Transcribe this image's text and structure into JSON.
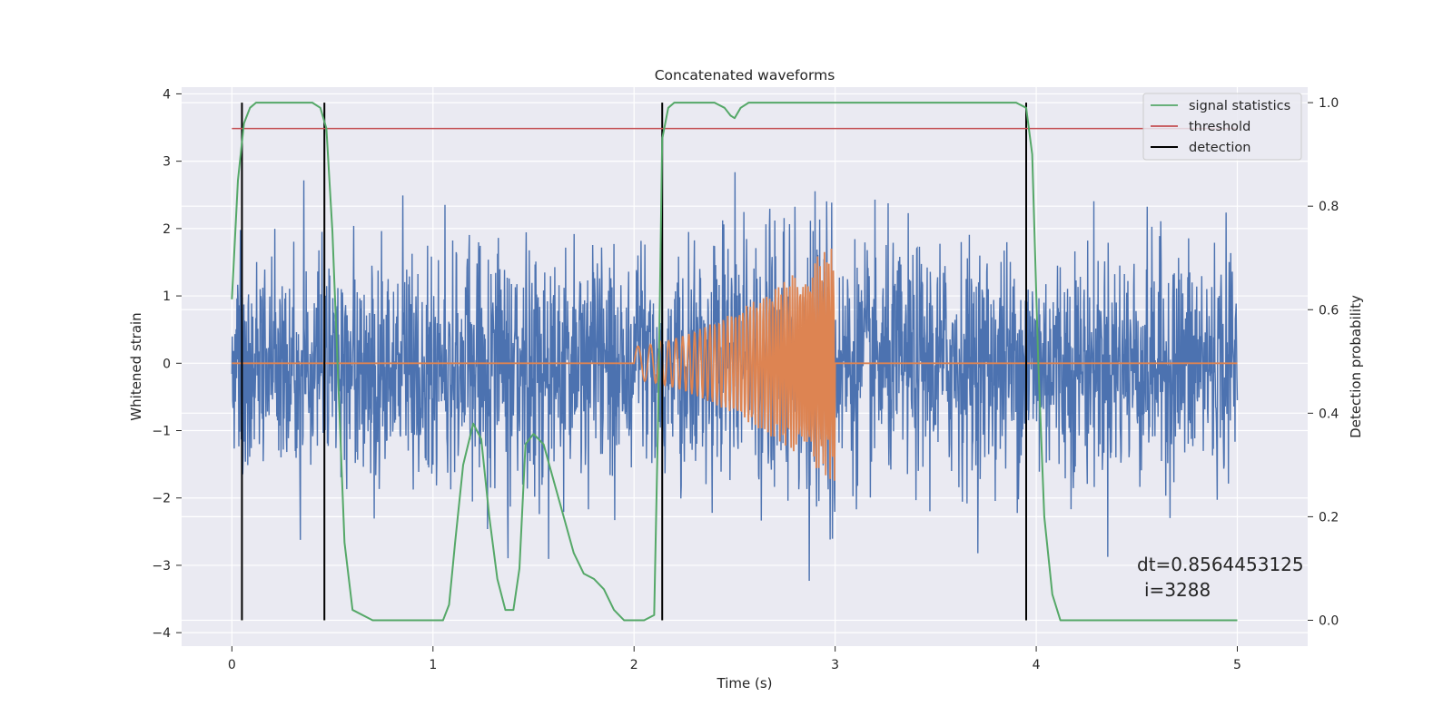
{
  "chart_data": {
    "type": "line",
    "title": "Concatenated waveforms",
    "xlabel": "Time (s)",
    "ylabel": "Whitened strain",
    "y2label": "Detection probability",
    "xlim": [
      -0.25,
      5.35
    ],
    "ylim": [
      -4.2,
      4.1
    ],
    "y2lim": [
      -0.05,
      1.03
    ],
    "xticks": [
      0,
      1,
      2,
      3,
      4,
      5
    ],
    "yticks": [
      4,
      3,
      2,
      1,
      0,
      -1,
      -2,
      -3,
      -4
    ],
    "y2ticks": [
      1.0,
      0.8,
      0.6,
      0.4,
      0.2,
      0.0
    ],
    "ytick_labels": [
      "4",
      "3",
      "2",
      "1",
      "0",
      "−1",
      "−2",
      "−3",
      "−4"
    ],
    "y2tick_labels": [
      "1.0",
      "0.8",
      "0.6",
      "0.4",
      "0.2",
      "0.0"
    ],
    "grid": true,
    "legend_position": "top-right",
    "colors": {
      "strain": "#4c72b0",
      "template": "#dd8452",
      "statistics": "#55a868",
      "threshold": "#c44e52",
      "detection": "#000000",
      "background": "#eaeaf2",
      "grid": "#ffffff"
    },
    "series": [
      {
        "name": "signal statistics",
        "axis": "right",
        "x": [
          0.0,
          0.03,
          0.06,
          0.09,
          0.12,
          0.15,
          0.2,
          0.3,
          0.4,
          0.44,
          0.47,
          0.5,
          0.53,
          0.56,
          0.6,
          0.7,
          0.9,
          1.05,
          1.08,
          1.11,
          1.15,
          1.2,
          1.24,
          1.28,
          1.32,
          1.36,
          1.4,
          1.43,
          1.46,
          1.5,
          1.55,
          1.6,
          1.65,
          1.7,
          1.75,
          1.8,
          1.85,
          1.9,
          1.95,
          2.0,
          2.05,
          2.1,
          2.12,
          2.14,
          2.17,
          2.2,
          2.3,
          2.4,
          2.45,
          2.48,
          2.5,
          2.53,
          2.57,
          2.7,
          3.0,
          3.5,
          3.9,
          3.95,
          3.98,
          4.01,
          4.04,
          4.08,
          4.12,
          4.2,
          4.6,
          5.0
        ],
        "y": [
          0.62,
          0.85,
          0.96,
          0.99,
          1.0,
          1.0,
          1.0,
          1.0,
          1.0,
          0.99,
          0.95,
          0.75,
          0.45,
          0.15,
          0.02,
          0.0,
          0.0,
          0.0,
          0.03,
          0.15,
          0.3,
          0.38,
          0.35,
          0.2,
          0.08,
          0.02,
          0.02,
          0.1,
          0.34,
          0.36,
          0.34,
          0.27,
          0.2,
          0.13,
          0.09,
          0.08,
          0.06,
          0.02,
          0.0,
          0.0,
          0.0,
          0.01,
          0.4,
          0.93,
          0.99,
          1.0,
          1.0,
          1.0,
          0.99,
          0.975,
          0.97,
          0.99,
          1.0,
          1.0,
          1.0,
          1.0,
          1.0,
          0.99,
          0.9,
          0.5,
          0.2,
          0.05,
          0.0,
          0.0,
          0.0,
          0.0
        ]
      },
      {
        "name": "threshold",
        "axis": "right",
        "x": [
          0.0,
          5.0
        ],
        "y": [
          0.95,
          0.95
        ]
      },
      {
        "name": "detection",
        "axis": "right",
        "x": [
          0.05,
          0.46,
          2.14,
          3.95
        ],
        "y_range": [
          0.0,
          1.0
        ]
      }
    ],
    "annotations": {
      "dt": "dt=0.8564453125",
      "i": "i=3288"
    }
  }
}
